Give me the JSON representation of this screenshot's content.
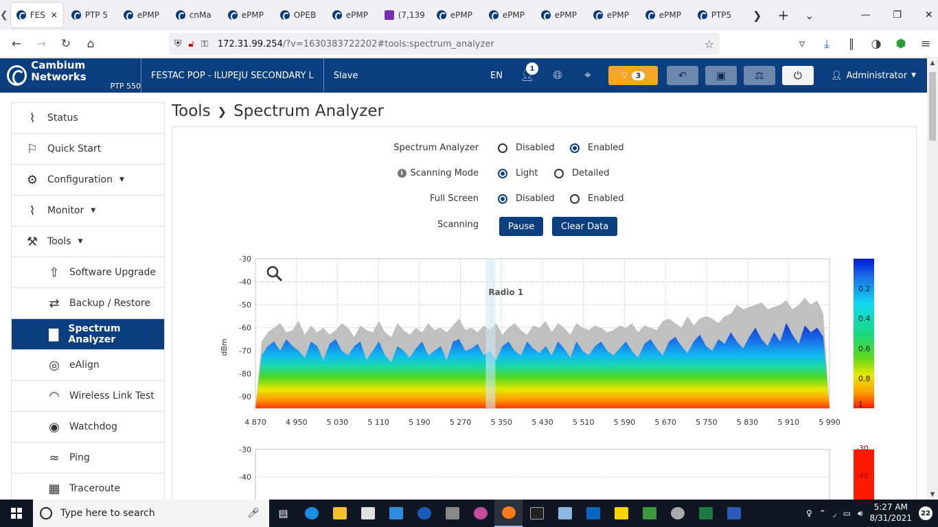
{
  "browser": {
    "tabs": [
      {
        "label": "FES",
        "active": true
      },
      {
        "label": "PTP 5"
      },
      {
        "label": "ePMP"
      },
      {
        "label": "cnMa"
      },
      {
        "label": "ePMP"
      },
      {
        "label": "OPEB"
      },
      {
        "label": "ePMP"
      },
      {
        "label": "(7,139",
        "icon": "mail-icon"
      },
      {
        "label": "ePMP"
      },
      {
        "label": "ePMP"
      },
      {
        "label": "ePMP"
      },
      {
        "label": "ePMP"
      },
      {
        "label": "ePMP"
      },
      {
        "label": "PTP5"
      }
    ],
    "url_host": "172.31.99.254",
    "url_rest": "/?v=1630383722202#tools:spectrum_analyzer"
  },
  "header": {
    "brand": "Cambium Networks",
    "model": "PTP 550",
    "site_name": "FESTAC POP - ILUPEJU SECONDARY L",
    "role": "Slave",
    "language": "EN",
    "user_badge": "1",
    "alert_count": "3",
    "admin_label": "Administrator"
  },
  "sidebar": {
    "items": [
      {
        "label": "Status",
        "icon": "pulse-icon"
      },
      {
        "label": "Quick Start",
        "icon": "runner-icon"
      },
      {
        "label": "Configuration",
        "icon": "gear-icon",
        "dropdown": true
      },
      {
        "label": "Monitor",
        "icon": "pulse-icon",
        "dropdown": true
      },
      {
        "label": "Tools",
        "icon": "wrench-icon",
        "dropdown": true
      },
      {
        "label": "Software Upgrade",
        "icon": "upgrade-icon",
        "sub": true
      },
      {
        "label": "Backup / Restore",
        "icon": "backup-icon",
        "sub": true
      },
      {
        "label": "Spectrum Analyzer",
        "icon": "bar-chart-icon",
        "sub": true,
        "active": true
      },
      {
        "label": "eAlign",
        "icon": "ealign-icon",
        "sub": true
      },
      {
        "label": "Wireless Link Test",
        "icon": "wifi-icon",
        "sub": true
      },
      {
        "label": "Watchdog",
        "icon": "eye-icon",
        "sub": true
      },
      {
        "label": "Ping",
        "icon": "ping-icon",
        "sub": true
      },
      {
        "label": "Traceroute",
        "icon": "traceroute-icon",
        "sub": true
      }
    ]
  },
  "page": {
    "breadcrumb_parent": "Tools",
    "title": "Spectrum Analyzer"
  },
  "form": {
    "spectrum_analyzer": {
      "label": "Spectrum Analyzer",
      "opt1": "Disabled",
      "opt2": "Enabled",
      "selected": "Enabled"
    },
    "scanning_mode": {
      "label": "Scanning Mode",
      "opt1": "Light",
      "opt2": "Detailed",
      "selected": "Light"
    },
    "full_screen": {
      "label": "Full Screen",
      "opt1": "Disabled",
      "opt2": "Enabled",
      "selected": "Disabled"
    },
    "scanning": {
      "label": "Scanning",
      "pause": "Pause",
      "clear": "Clear Data"
    }
  },
  "chart_data": [
    {
      "type": "area",
      "ylabel": "dBm",
      "xlim": [
        4870,
        5990
      ],
      "ylim": [
        -95,
        -30
      ],
      "x_ticks": [
        "4 870",
        "4 950",
        "5 030",
        "5 110",
        "5 190",
        "5 270",
        "5 350",
        "5 430",
        "5 510",
        "5 590",
        "5 670",
        "5 750",
        "5 830",
        "5 910",
        "5 990"
      ],
      "y_ticks": [
        "-30",
        "-40",
        "-50",
        "-60",
        "-70",
        "-80",
        "-90"
      ],
      "annotation": "Radio 1",
      "annotation_x": 5330,
      "legend_ticks": [
        "0.2",
        "0.4",
        "0.6",
        "0.8",
        "1"
      ],
      "grid": true,
      "series": [
        {
          "values_max_hold": [
            -95,
            -66,
            -62,
            -60,
            -58,
            -62,
            -61,
            -57,
            -63,
            -59,
            -62,
            -60,
            -63,
            -61,
            -58,
            -60,
            -64,
            -59,
            -61,
            -62,
            -57,
            -62,
            -64,
            -58,
            -61,
            -63,
            -60,
            -62,
            -58,
            -61,
            -60,
            -62,
            -59,
            -56,
            -61,
            -60,
            -62,
            -59,
            -61,
            -58,
            -63,
            -60,
            -58,
            -61,
            -63,
            -59,
            -60,
            -57,
            -62,
            -58,
            -60,
            -63,
            -58,
            -60,
            -61,
            -59,
            -60,
            -62,
            -61,
            -59,
            -60,
            -58,
            -62,
            -59,
            -60,
            -61,
            -57,
            -56,
            -58,
            -60,
            -55,
            -59,
            -56,
            -55,
            -56,
            -58,
            -55,
            -54,
            -50,
            -52,
            -51,
            -50,
            -49,
            -52,
            -51,
            -50,
            -48,
            -52,
            -50,
            -47,
            -50,
            -48,
            -54,
            -95
          ],
          "values_average": [
            -95,
            -72,
            -68,
            -66,
            -70,
            -65,
            -68,
            -70,
            -73,
            -66,
            -68,
            -74,
            -67,
            -65,
            -70,
            -72,
            -68,
            -66,
            -74,
            -70,
            -66,
            -72,
            -75,
            -68,
            -70,
            -73,
            -69,
            -66,
            -72,
            -70,
            -68,
            -74,
            -66,
            -65,
            -70,
            -69,
            -67,
            -72,
            -70,
            -74,
            -68,
            -66,
            -70,
            -72,
            -66,
            -69,
            -71,
            -68,
            -72,
            -66,
            -69,
            -73,
            -66,
            -70,
            -72,
            -68,
            -66,
            -70,
            -72,
            -69,
            -66,
            -70,
            -73,
            -67,
            -65,
            -69,
            -72,
            -66,
            -64,
            -68,
            -71,
            -66,
            -63,
            -68,
            -70,
            -65,
            -67,
            -62,
            -66,
            -69,
            -64,
            -60,
            -65,
            -68,
            -62,
            -66,
            -58,
            -63,
            -67,
            -59,
            -62,
            -60,
            -64,
            -95
          ]
        }
      ]
    },
    {
      "type": "area",
      "y_ticks": [
        "-30",
        "-40"
      ],
      "legend_ticks": [
        "-30",
        "-40"
      ]
    }
  ],
  "taskbar": {
    "search_placeholder": "Type here to search",
    "time": "5:27 AM",
    "date": "8/31/2021",
    "notifications": "22"
  }
}
